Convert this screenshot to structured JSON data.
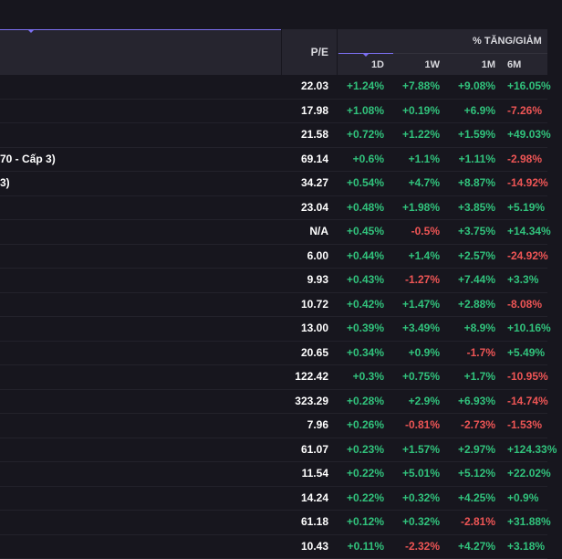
{
  "header": {
    "pe_label": "P/E",
    "pct_change_label": "% TĂNG/GIẢM",
    "periods": [
      "1D",
      "1W",
      "1M",
      "6M"
    ]
  },
  "colors": {
    "background": "#17161e",
    "header_bg": "#26252f",
    "accent": "#7b6ff0",
    "positive": "#31c27c",
    "negative": "#ee5555"
  },
  "rows": [
    {
      "name": "",
      "pe": "22.03",
      "d1": "+1.24%",
      "w1": "+7.88%",
      "m1": "+9.08%",
      "m6": "+16.05%"
    },
    {
      "name": "",
      "pe": "17.98",
      "d1": "+1.08%",
      "w1": "+0.19%",
      "m1": "+6.9%",
      "m6": "-7.26%"
    },
    {
      "name": "",
      "pe": "21.58",
      "d1": "+0.72%",
      "w1": "+1.22%",
      "m1": "+1.59%",
      "m6": "+49.03%"
    },
    {
      "name": "70 - Cấp 3)",
      "pe": "69.14",
      "d1": "+0.6%",
      "w1": "+1.1%",
      "m1": "+1.11%",
      "m6": "-2.98%"
    },
    {
      "name": "3)",
      "pe": "34.27",
      "d1": "+0.54%",
      "w1": "+4.7%",
      "m1": "+8.87%",
      "m6": "-14.92%"
    },
    {
      "name": "",
      "pe": "23.04",
      "d1": "+0.48%",
      "w1": "+1.98%",
      "m1": "+3.85%",
      "m6": "+5.19%"
    },
    {
      "name": "",
      "pe": "N/A",
      "d1": "+0.45%",
      "w1": "-0.5%",
      "m1": "+3.75%",
      "m6": "+14.34%"
    },
    {
      "name": "",
      "pe": "6.00",
      "d1": "+0.44%",
      "w1": "+1.4%",
      "m1": "+2.57%",
      "m6": "-24.92%"
    },
    {
      "name": "",
      "pe": "9.93",
      "d1": "+0.43%",
      "w1": "-1.27%",
      "m1": "+7.44%",
      "m6": "+3.3%"
    },
    {
      "name": "",
      "pe": "10.72",
      "d1": "+0.42%",
      "w1": "+1.47%",
      "m1": "+2.88%",
      "m6": "-8.08%"
    },
    {
      "name": "",
      "pe": "13.00",
      "d1": "+0.39%",
      "w1": "+3.49%",
      "m1": "+8.9%",
      "m6": "+10.16%"
    },
    {
      "name": "",
      "pe": "20.65",
      "d1": "+0.34%",
      "w1": "+0.9%",
      "m1": "-1.7%",
      "m6": "+5.49%"
    },
    {
      "name": "",
      "pe": "122.42",
      "d1": "+0.3%",
      "w1": "+0.75%",
      "m1": "+1.7%",
      "m6": "-10.95%"
    },
    {
      "name": "",
      "pe": "323.29",
      "d1": "+0.28%",
      "w1": "+2.9%",
      "m1": "+6.93%",
      "m6": "-14.74%"
    },
    {
      "name": "",
      "pe": "7.96",
      "d1": "+0.26%",
      "w1": "-0.81%",
      "m1": "-2.73%",
      "m6": "-1.53%"
    },
    {
      "name": "",
      "pe": "61.07",
      "d1": "+0.23%",
      "w1": "+1.57%",
      "m1": "+2.97%",
      "m6": "+124.33%"
    },
    {
      "name": "",
      "pe": "11.54",
      "d1": "+0.22%",
      "w1": "+5.01%",
      "m1": "+5.12%",
      "m6": "+22.02%"
    },
    {
      "name": "",
      "pe": "14.24",
      "d1": "+0.22%",
      "w1": "+0.32%",
      "m1": "+4.25%",
      "m6": "+0.9%"
    },
    {
      "name": "",
      "pe": "61.18",
      "d1": "+0.12%",
      "w1": "+0.32%",
      "m1": "-2.81%",
      "m6": "+31.88%"
    },
    {
      "name": "",
      "pe": "10.43",
      "d1": "+0.11%",
      "w1": "-2.32%",
      "m1": "+4.27%",
      "m6": "+3.18%"
    }
  ]
}
